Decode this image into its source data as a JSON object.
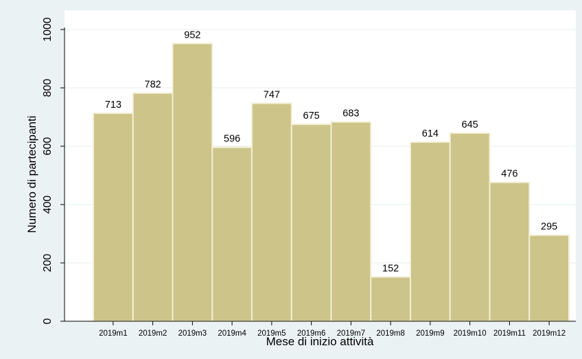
{
  "chart_data": {
    "type": "bar",
    "title": "",
    "xlabel": "Mese di inizio attività",
    "ylabel": "Numero di partecipanti",
    "categories": [
      "2019m1",
      "2019m2",
      "2019m3",
      "2019m4",
      "2019m5",
      "2019m6",
      "2019m7",
      "2019m8",
      "2019m9",
      "2019m10",
      "2019m11",
      "2019m12"
    ],
    "values": [
      713,
      782,
      952,
      596,
      747,
      675,
      683,
      152,
      614,
      645,
      476,
      295
    ],
    "ylim": [
      0,
      1000
    ],
    "yticks": [
      0,
      200,
      400,
      600,
      800,
      1000
    ],
    "grid": true,
    "bar_color": "#cdc489",
    "plot_background": "#ffffff",
    "outer_background": "#eaf2f3"
  }
}
